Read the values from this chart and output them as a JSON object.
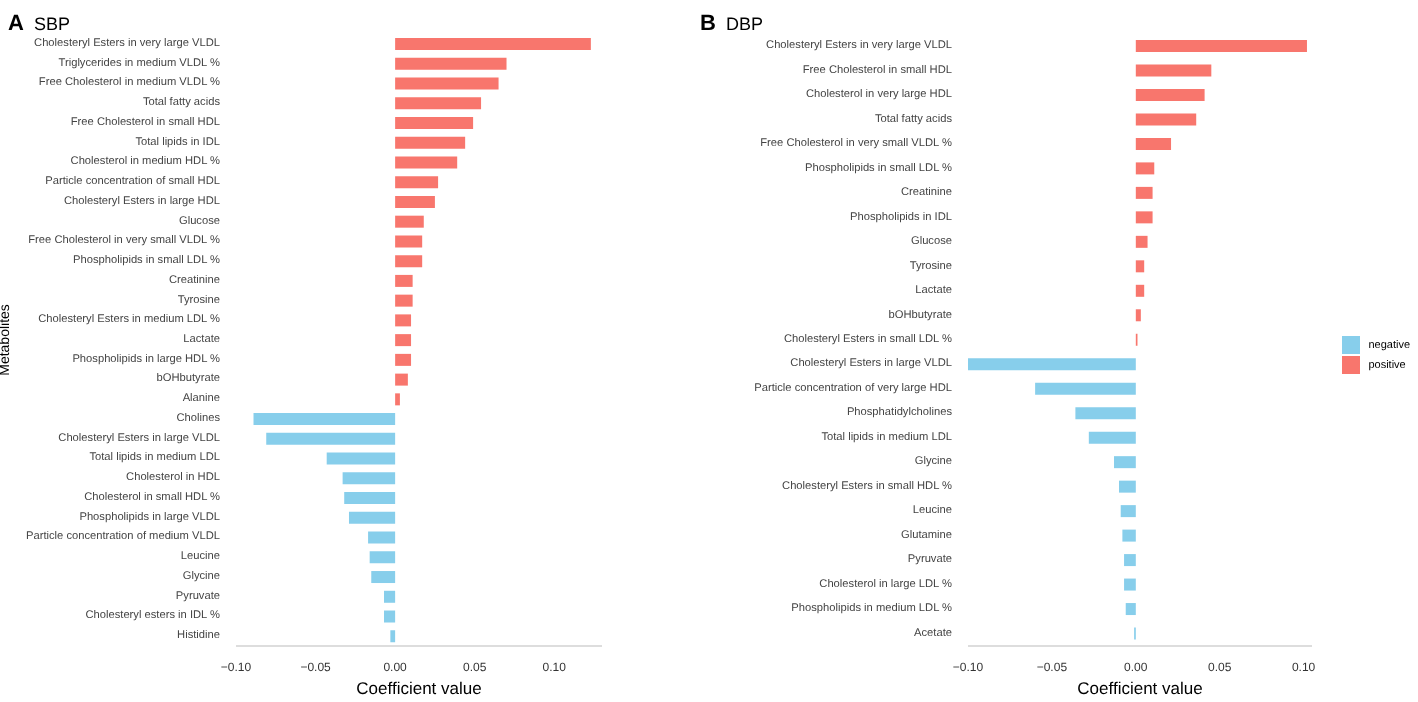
{
  "chart_data": [
    {
      "type": "bar",
      "orientation": "horizontal",
      "title": "SBP",
      "annotations": [
        "A"
      ],
      "xlabel": "Coefficient value",
      "ylabel": "Metabolites",
      "categories": [
        "Cholesteryl Esters in very large VLDL",
        "Triglycerides in medium VLDL %",
        "Free Cholesterol in medium VLDL %",
        "Total fatty acids",
        "Free Cholesterol in small HDL",
        "Total lipids in IDL",
        "Cholesterol in medium HDL %",
        "Particle concentration of small HDL",
        "Cholesteryl Esters in large HDL",
        "Glucose",
        "Free Cholesterol in very small VLDL %",
        "Phospholipids in small LDL %",
        "Creatinine",
        "Tyrosine",
        "Cholesteryl Esters in medium LDL %",
        "Lactate",
        "Phospholipids in large HDL %",
        "bOHbutyrate",
        "Alanine",
        "Cholines",
        "Cholesteryl Esters in large VLDL",
        "Total lipids in medium LDL",
        "Cholesterol in HDL",
        "Cholesterol in small HDL %",
        "Phospholipids in large VLDL",
        "Particle concentration of medium VLDL",
        "Leucine",
        "Glycine",
        "Pyruvate",
        "Cholesteryl esters in IDL %",
        "Histidine"
      ],
      "series": [
        {
          "color": "#87ceeb",
          "values": [
            null,
            null,
            null,
            null,
            null,
            null,
            null,
            null,
            null,
            null,
            null,
            null,
            null,
            null,
            null,
            null,
            null,
            null,
            null,
            -0.089,
            -0.081,
            -0.043,
            -0.033,
            -0.032,
            -0.029,
            -0.017,
            -0.016,
            -0.015,
            -0.007,
            -0.007,
            -0.003
          ]
        },
        {
          "color": "#f8766d",
          "values": [
            0.123,
            0.07,
            0.065,
            0.054,
            0.049,
            0.044,
            0.039,
            0.027,
            0.025,
            0.018,
            0.017,
            0.017,
            0.011,
            0.011,
            0.01,
            0.01,
            0.01,
            0.008,
            0.003,
            null,
            null,
            null,
            null,
            null,
            null,
            null,
            null,
            null,
            null,
            null,
            null
          ]
        }
      ],
      "xlim": [
        -0.1,
        0.13
      ],
      "xticks": [
        {
          "value": -0.1,
          "label": "−0.10"
        },
        {
          "value": -0.05,
          "label": "−0.05"
        },
        {
          "value": 0,
          "label": "0.00"
        },
        {
          "value": 0.05,
          "label": "0.05"
        },
        {
          "value": 0.1,
          "label": "0.10"
        }
      ],
      "grid": false,
      "legend": false
    },
    {
      "type": "bar",
      "orientation": "horizontal",
      "title": "DBP",
      "annotations": [
        "B"
      ],
      "xlabel": "Coefficient value",
      "categories": [
        "Cholesteryl Esters in very large VLDL",
        "Free Cholesterol in small HDL",
        "Cholesterol in very large HDL",
        "Total fatty acids",
        "Free Cholesterol in very small VLDL %",
        "Phospholipids in small LDL %",
        "Creatinine",
        "Phospholipids in IDL",
        "Glucose",
        "Tyrosine",
        "Lactate",
        "bOHbutyrate",
        "Cholesteryl Esters in small LDL %",
        "Cholesteryl Esters in large VLDL",
        "Particle concentration of very large HDL",
        "Phosphatidylcholines",
        "Total lipids in medium LDL",
        "Glycine",
        "Cholesteryl Esters in small HDL %",
        "Leucine",
        "Glutamine",
        "Pyruvate",
        "Cholesterol in large LDL %",
        "Phospholipids in medium LDL %",
        "Acetate"
      ],
      "series": [
        {
          "name": "negative",
          "color": "#87ceeb",
          "values": [
            null,
            null,
            null,
            null,
            null,
            null,
            null,
            null,
            null,
            null,
            null,
            null,
            null,
            -0.1,
            -0.06,
            -0.036,
            -0.028,
            -0.013,
            -0.01,
            -0.009,
            -0.008,
            -0.007,
            -0.007,
            -0.006,
            -0.001
          ]
        },
        {
          "name": "positive",
          "color": "#f8766d",
          "values": [
            0.102,
            0.045,
            0.041,
            0.036,
            0.021,
            0.011,
            0.01,
            0.01,
            0.007,
            0.005,
            0.005,
            0.003,
            0.001,
            null,
            null,
            null,
            null,
            null,
            null,
            null,
            null,
            null,
            null,
            null,
            null
          ]
        }
      ],
      "xlim": [
        -0.1,
        0.105
      ],
      "xticks": [
        {
          "value": -0.1,
          "label": "−0.10"
        },
        {
          "value": -0.05,
          "label": "−0.05"
        },
        {
          "value": 0,
          "label": "0.00"
        },
        {
          "value": 0.05,
          "label": "0.05"
        },
        {
          "value": 0.1,
          "label": "0.10"
        }
      ],
      "grid": false,
      "legend": "right"
    }
  ]
}
